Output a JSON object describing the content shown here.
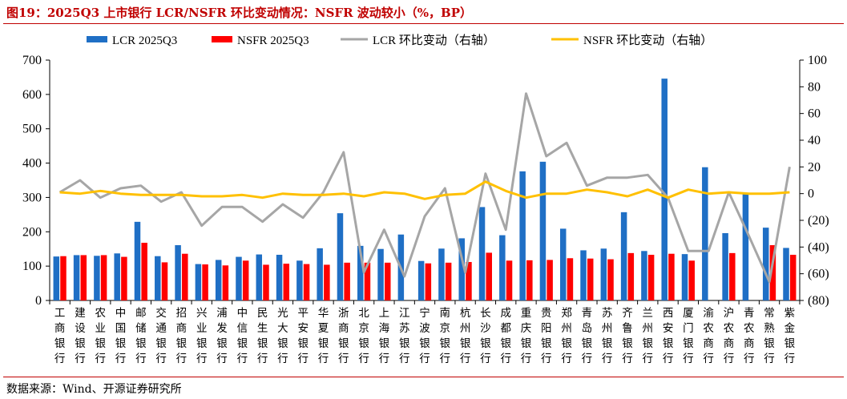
{
  "title": "图19：2025Q3 上市银行 LCR/NSFR 环比变动情况：NSFR 波动较小（%，BP）",
  "source": "数据来源：Wind、开源证券研究所",
  "colors": {
    "lcr": "#1f6fc5",
    "nsfr": "#ff0000",
    "lcr_change": "#a6a6a6",
    "nsfr_change": "#ffc000",
    "accent": "#c00000"
  },
  "chart_data": {
    "type": "bar",
    "title": "",
    "xlabel": "",
    "ylabel": "",
    "ylim": [
      0,
      700
    ],
    "y2lim": [
      -80,
      100
    ],
    "yticks": [
      "0",
      "100",
      "200",
      "300",
      "400",
      "500",
      "600",
      "700"
    ],
    "y2ticks": [
      "(80)",
      "(60)",
      "(40)",
      "(20)",
      "0",
      "20",
      "40",
      "60",
      "80",
      "100"
    ],
    "legend_position": "top",
    "categories": [
      "工商银行",
      "建设银行",
      "农业银行",
      "中国银行",
      "邮储银行",
      "交通银行",
      "招商银行",
      "兴业银行",
      "浦发银行",
      "中信银行",
      "民生银行",
      "光大银行",
      "平安银行",
      "华夏银行",
      "浙商银行",
      "北京银行",
      "上海银行",
      "江苏银行",
      "宁波银行",
      "南京银行",
      "杭州银行",
      "长沙银行",
      "成都银行",
      "重庆银行",
      "贵阳银行",
      "郑州银行",
      "青岛银行",
      "苏州银行",
      "齐鲁银行",
      "兰州银行",
      "西安银行",
      "厦门银行",
      "渝农商行",
      "沪农商行",
      "青农商行",
      "常熟银行",
      "紫金银行"
    ],
    "series": [
      {
        "name": "LCR 2025Q3",
        "type": "bar",
        "axis": "left",
        "values": [
          128,
          132,
          130,
          137,
          229,
          129,
          161,
          106,
          118,
          127,
          134,
          133,
          116,
          152,
          254,
          159,
          150,
          192,
          115,
          151,
          181,
          272,
          190,
          376,
          404,
          209,
          146,
          151,
          257,
          144,
          646,
          135,
          388,
          196,
          310,
          212,
          153
        ]
      },
      {
        "name": "NSFR 2025Q3",
        "type": "bar",
        "axis": "left",
        "values": [
          129,
          132,
          132,
          127,
          168,
          111,
          136,
          105,
          102,
          116,
          104,
          107,
          106,
          104,
          110,
          110,
          110,
          null,
          108,
          110,
          112,
          139,
          116,
          117,
          118,
          123,
          122,
          120,
          138,
          133,
          136,
          116,
          null,
          138,
          null,
          161,
          133
        ]
      },
      {
        "name": "LCR 环比变动（右轴）",
        "type": "line",
        "axis": "right",
        "values": [
          1,
          10,
          -3,
          4,
          6,
          -6,
          1,
          -24,
          -10,
          -10,
          -21,
          -8,
          -18,
          1,
          31,
          -59,
          -27,
          -62,
          -17,
          4,
          -59,
          15,
          -27,
          75,
          28,
          38,
          6,
          12,
          12,
          14,
          -3,
          -43,
          -43,
          1,
          -32,
          -66,
          20
        ]
      },
      {
        "name": "NSFR 环比变动（右轴）",
        "type": "line",
        "axis": "right",
        "values": [
          1,
          0,
          2,
          0,
          -1,
          -1,
          -1,
          -2,
          -2,
          -1,
          -3,
          0,
          -1,
          -1,
          0,
          -2,
          1,
          0,
          -4,
          -1,
          0,
          9,
          2,
          -3,
          0,
          0,
          3,
          1,
          -2,
          3,
          -3,
          3,
          0,
          1,
          0,
          0,
          1
        ]
      }
    ]
  }
}
